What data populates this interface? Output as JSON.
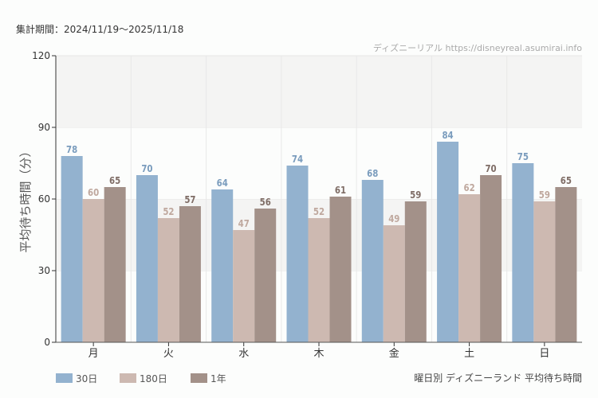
{
  "header": {
    "period": "集計期間：2024/11/19〜2025/11/18",
    "credit": "ディズニーリアル https://disneyreal.asumirai.info"
  },
  "chart_data": {
    "type": "bar",
    "title": "曜日別 ディズニーランド 平均待ち時間",
    "ylabel": "平均待ち時間（分）",
    "xlabel": "",
    "ylim": [
      0,
      120
    ],
    "yticks": [
      0,
      30,
      60,
      90,
      120
    ],
    "categories": [
      "月",
      "火",
      "水",
      "木",
      "金",
      "土",
      "日"
    ],
    "series": [
      {
        "name": "30日",
        "values": [
          78,
          70,
          64,
          74,
          68,
          84,
          75
        ],
        "color": "#93b2cf",
        "label_color": "#7a9cbd"
      },
      {
        "name": "180日",
        "values": [
          60,
          52,
          47,
          52,
          49,
          62,
          59
        ],
        "color": "#cdb9b1",
        "label_color": "#bfa89e"
      },
      {
        "name": "1年",
        "values": [
          65,
          57,
          56,
          61,
          59,
          70,
          65
        ],
        "color": "#a39189",
        "label_color": "#7f6d66"
      }
    ],
    "grid": true,
    "legend": "bottom-left"
  }
}
